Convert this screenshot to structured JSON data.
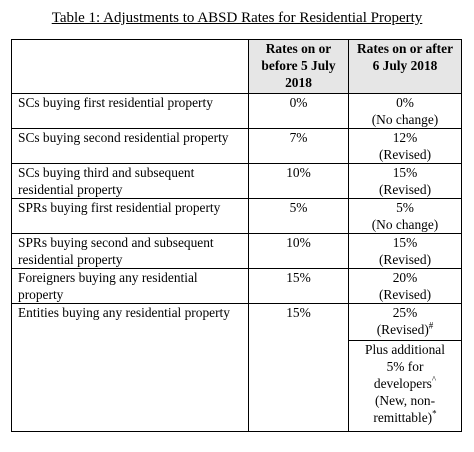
{
  "caption": "Table 1: Adjustments to ABSD Rates for Residential Property",
  "headers": {
    "col1": "",
    "col2": "Rates on or before 5 July 2018",
    "col3": "Rates on or after 6 July 2018"
  },
  "rows": [
    {
      "profile": "SCs buying first residential property",
      "before": "0%",
      "after_rate": "0%",
      "after_note": "(No change)"
    },
    {
      "profile": "SCs buying second residential property",
      "before": "7%",
      "after_rate": "12%",
      "after_note": "(Revised)"
    },
    {
      "profile": "SCs buying third and subsequent residential property",
      "before": "10%",
      "after_rate": "15%",
      "after_note": "(Revised)"
    },
    {
      "profile": "SPRs buying first residential property",
      "before": "5%",
      "after_rate": "5%",
      "after_note": "(No change)"
    },
    {
      "profile": "SPRs buying second and subsequent residential property",
      "before": "10%",
      "after_rate": "15%",
      "after_note": "(Revised)"
    },
    {
      "profile": "Foreigners buying any residential property",
      "before": "15%",
      "after_rate": "20%",
      "after_note": "(Revised)"
    },
    {
      "profile": "Entities buying any residential property",
      "before": "15%",
      "after_rate": "25%",
      "after_note": "(Revised)",
      "after_note_mark": "#"
    }
  ],
  "developer_note": {
    "text": "Plus additional 5% for developers",
    "mark": "^",
    "note": "(New, non-remittable)",
    "note_mark": "*"
  }
}
